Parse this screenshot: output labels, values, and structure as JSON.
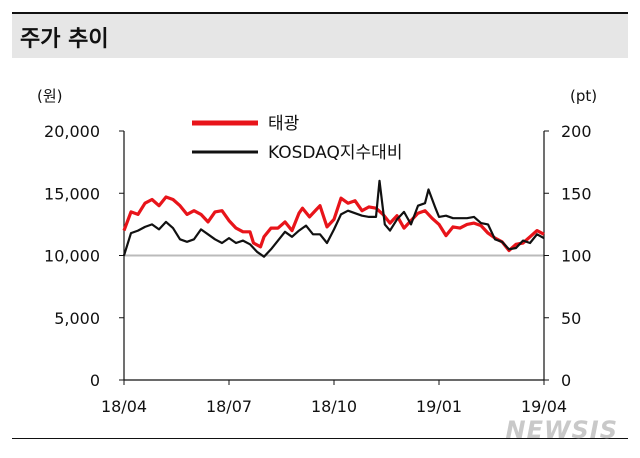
{
  "header": {
    "title": "주가 추이"
  },
  "watermark": "NEWSIS",
  "chart_data": {
    "type": "line",
    "left_unit": "(원)",
    "right_unit": "(pt)",
    "left_axis": {
      "range": [
        0,
        20000
      ],
      "ticks": [
        "0",
        "5,000",
        "10,000",
        "15,000",
        "20,000"
      ]
    },
    "right_axis": {
      "range": [
        0,
        200
      ],
      "ticks": [
        "0",
        "50",
        "100",
        "150",
        "200"
      ]
    },
    "x_ticks": [
      "18/04",
      "18/07",
      "18/10",
      "19/01",
      "19/04"
    ],
    "x_range_months": [
      0,
      12
    ],
    "reference_line": {
      "axis": "left",
      "value": 10000,
      "color": "#bbbbbb"
    },
    "legend": {
      "placement": "top-center"
    },
    "series": [
      {
        "name": "태광",
        "axis": "left",
        "color": "#e8141a",
        "points": [
          [
            0.0,
            12000
          ],
          [
            0.2,
            13500
          ],
          [
            0.4,
            13300
          ],
          [
            0.6,
            14200
          ],
          [
            0.8,
            14500
          ],
          [
            1.0,
            14000
          ],
          [
            1.2,
            14700
          ],
          [
            1.4,
            14500
          ],
          [
            1.6,
            14000
          ],
          [
            1.8,
            13300
          ],
          [
            2.0,
            13600
          ],
          [
            2.2,
            13300
          ],
          [
            2.4,
            12700
          ],
          [
            2.6,
            13500
          ],
          [
            2.8,
            13600
          ],
          [
            3.0,
            12800
          ],
          [
            3.2,
            12200
          ],
          [
            3.4,
            11900
          ],
          [
            3.6,
            11900
          ],
          [
            3.7,
            11000
          ],
          [
            3.9,
            10700
          ],
          [
            4.0,
            11500
          ],
          [
            4.2,
            12200
          ],
          [
            4.4,
            12200
          ],
          [
            4.6,
            12700
          ],
          [
            4.8,
            12000
          ],
          [
            5.0,
            13400
          ],
          [
            5.1,
            13800
          ],
          [
            5.3,
            13100
          ],
          [
            5.5,
            13700
          ],
          [
            5.6,
            14000
          ],
          [
            5.8,
            12300
          ],
          [
            6.0,
            12900
          ],
          [
            6.2,
            14600
          ],
          [
            6.4,
            14200
          ],
          [
            6.6,
            14400
          ],
          [
            6.8,
            13600
          ],
          [
            7.0,
            13900
          ],
          [
            7.2,
            13800
          ],
          [
            7.4,
            13300
          ],
          [
            7.6,
            12600
          ],
          [
            7.8,
            13200
          ],
          [
            8.0,
            12200
          ],
          [
            8.2,
            12800
          ],
          [
            8.4,
            13400
          ],
          [
            8.6,
            13600
          ],
          [
            8.8,
            13000
          ],
          [
            9.0,
            12500
          ],
          [
            9.2,
            11600
          ],
          [
            9.4,
            12300
          ],
          [
            9.6,
            12200
          ],
          [
            9.8,
            12500
          ],
          [
            10.0,
            12600
          ],
          [
            10.2,
            12400
          ],
          [
            10.4,
            11800
          ],
          [
            10.6,
            11400
          ],
          [
            10.8,
            11100
          ],
          [
            11.0,
            10400
          ],
          [
            11.2,
            10900
          ],
          [
            11.4,
            11000
          ],
          [
            11.6,
            11500
          ],
          [
            11.8,
            12000
          ],
          [
            12.0,
            11700
          ]
        ]
      },
      {
        "name": "KOSDAQ지수대비",
        "axis": "right",
        "color": "#111111",
        "points": [
          [
            0.0,
            100
          ],
          [
            0.2,
            118
          ],
          [
            0.4,
            120
          ],
          [
            0.6,
            123
          ],
          [
            0.8,
            125
          ],
          [
            1.0,
            121
          ],
          [
            1.2,
            127
          ],
          [
            1.4,
            122
          ],
          [
            1.6,
            113
          ],
          [
            1.8,
            111
          ],
          [
            2.0,
            113
          ],
          [
            2.2,
            121
          ],
          [
            2.4,
            117
          ],
          [
            2.6,
            113
          ],
          [
            2.8,
            110
          ],
          [
            3.0,
            114
          ],
          [
            3.2,
            110
          ],
          [
            3.4,
            112
          ],
          [
            3.6,
            109
          ],
          [
            3.8,
            103
          ],
          [
            4.0,
            99
          ],
          [
            4.2,
            105
          ],
          [
            4.4,
            112
          ],
          [
            4.6,
            119
          ],
          [
            4.8,
            115
          ],
          [
            5.0,
            120
          ],
          [
            5.2,
            124
          ],
          [
            5.4,
            117
          ],
          [
            5.6,
            117
          ],
          [
            5.8,
            110
          ],
          [
            6.0,
            121
          ],
          [
            6.2,
            133
          ],
          [
            6.4,
            136
          ],
          [
            6.6,
            134
          ],
          [
            6.8,
            132
          ],
          [
            7.0,
            131
          ],
          [
            7.2,
            131
          ],
          [
            7.3,
            160
          ],
          [
            7.45,
            125
          ],
          [
            7.6,
            120
          ],
          [
            7.8,
            129
          ],
          [
            8.0,
            135
          ],
          [
            8.2,
            125
          ],
          [
            8.4,
            140
          ],
          [
            8.6,
            142
          ],
          [
            8.7,
            153
          ],
          [
            8.9,
            138
          ],
          [
            9.0,
            131
          ],
          [
            9.2,
            132
          ],
          [
            9.4,
            130
          ],
          [
            9.6,
            130
          ],
          [
            9.8,
            130
          ],
          [
            10.0,
            131
          ],
          [
            10.2,
            126
          ],
          [
            10.4,
            125
          ],
          [
            10.6,
            113
          ],
          [
            10.8,
            111
          ],
          [
            11.0,
            105
          ],
          [
            11.2,
            106
          ],
          [
            11.4,
            112
          ],
          [
            11.6,
            110
          ],
          [
            11.8,
            117
          ],
          [
            12.0,
            114
          ]
        ]
      }
    ]
  }
}
